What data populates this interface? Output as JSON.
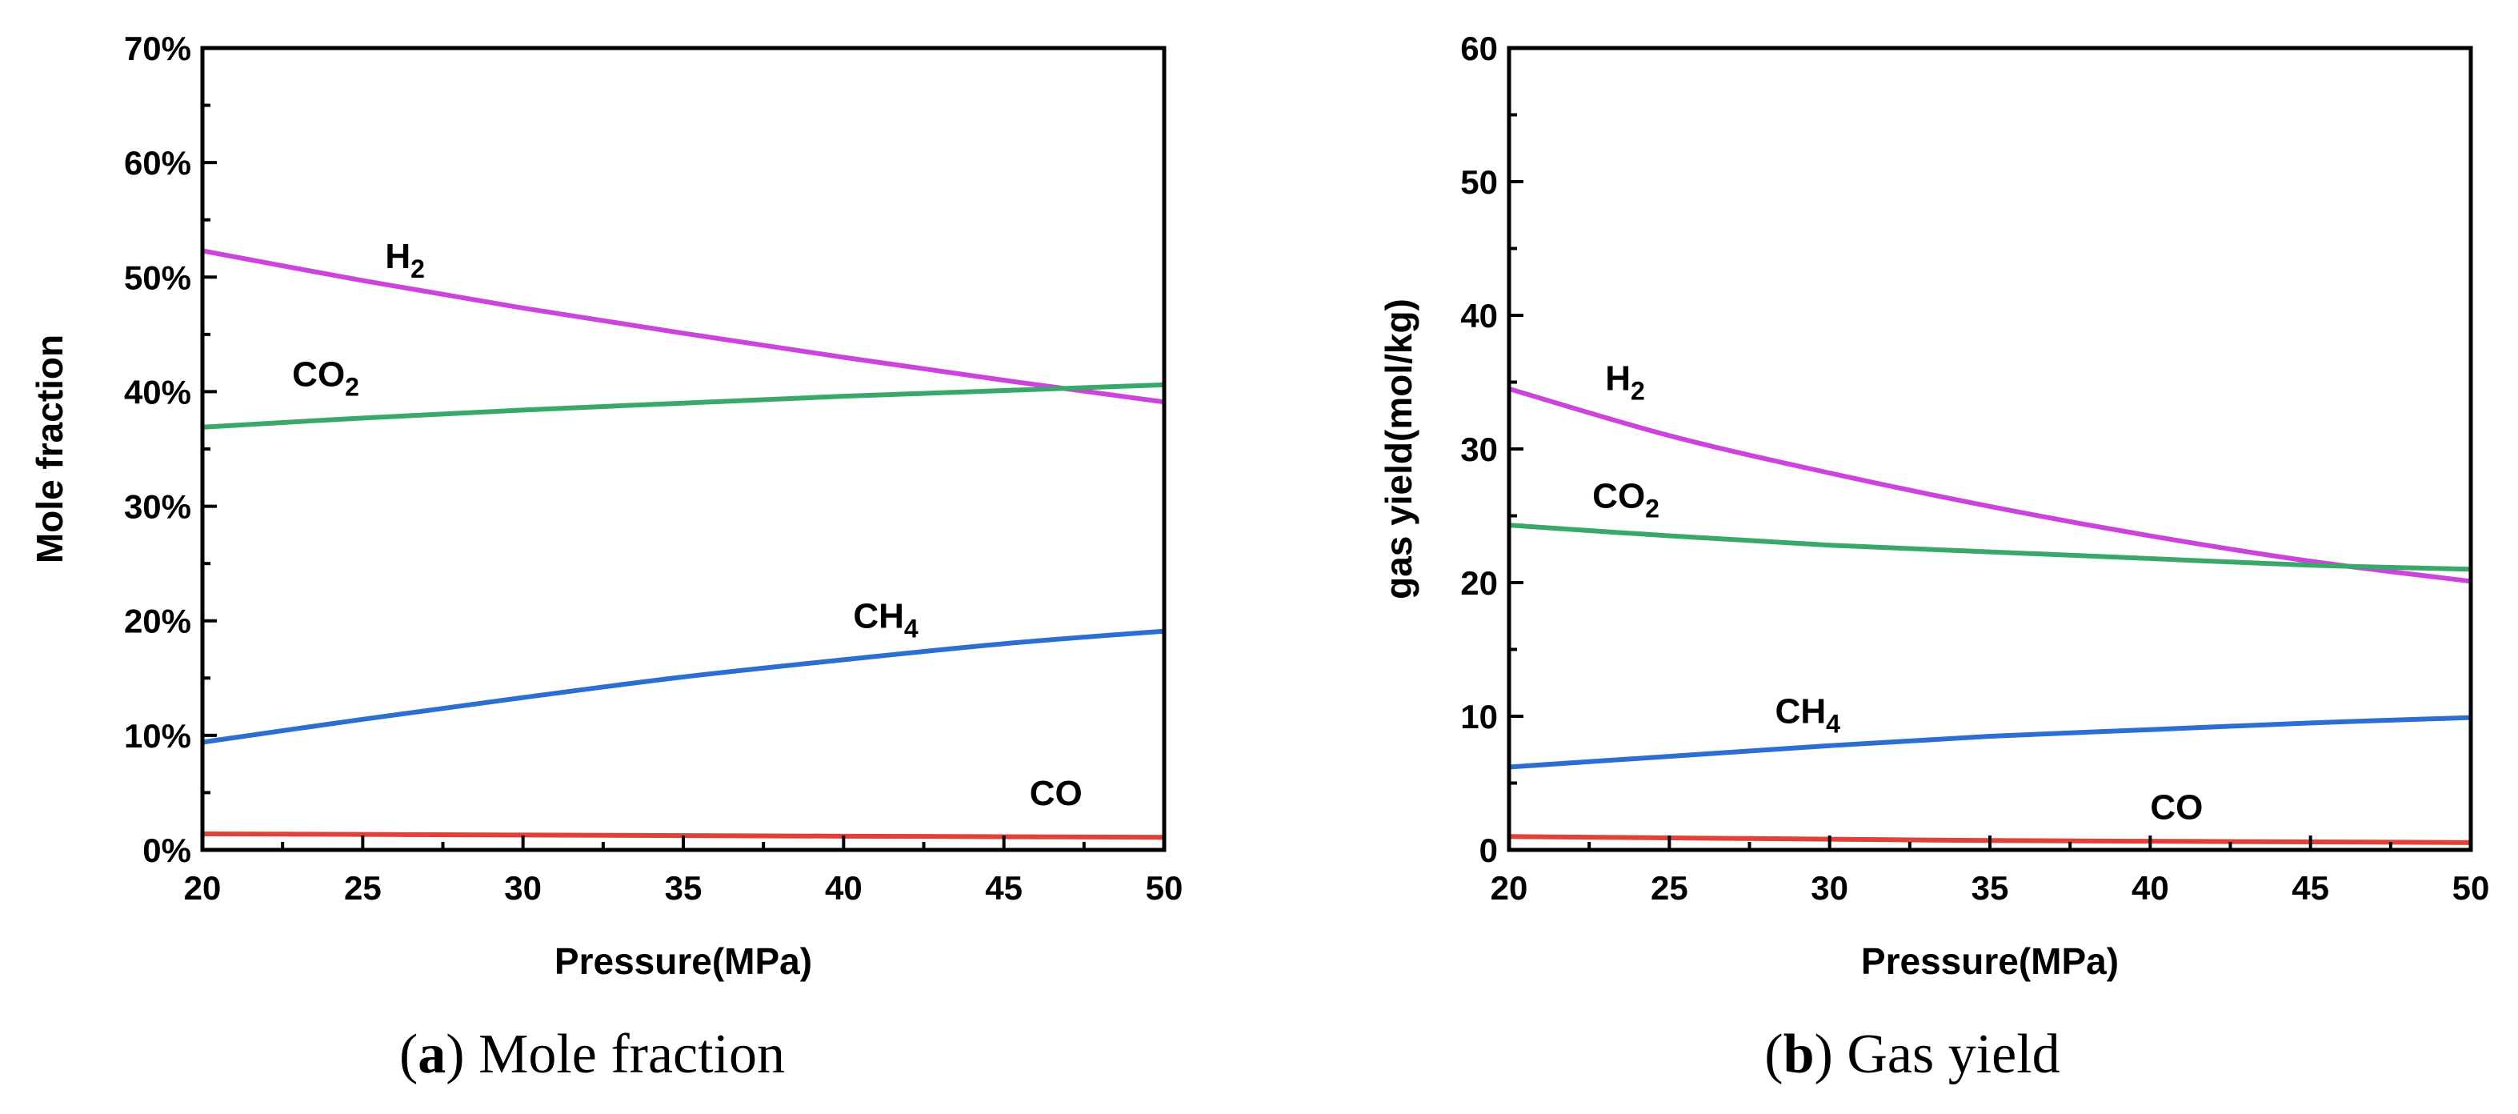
{
  "chart_data": [
    {
      "type": "line",
      "caption_letter": "a",
      "caption_text": " Mole fraction",
      "xlabel": "Pressure(MPa)",
      "ylabel": "Mole fraction",
      "xlim": [
        20,
        50
      ],
      "ylim": [
        0,
        70
      ],
      "x_ticks": [
        20,
        25,
        30,
        35,
        40,
        45,
        50
      ],
      "y_ticks": [
        0,
        10,
        20,
        30,
        40,
        50,
        60,
        70
      ],
      "y_tick_labels": [
        "0%",
        "10%",
        "20%",
        "30%",
        "40%",
        "50%",
        "60%",
        "70%"
      ],
      "x_tick_labels": [
        "20",
        "25",
        "30",
        "35",
        "40",
        "45",
        "50"
      ],
      "series": [
        {
          "name": "H",
          "sub": "2",
          "color": "#cc44dd",
          "x": [
            20,
            25,
            30,
            35,
            40,
            45,
            50
          ],
          "values": [
            52.3,
            49.7,
            47.3,
            45.1,
            43.0,
            41.0,
            39.1
          ],
          "label_at": [
            25.7,
            50.8
          ]
        },
        {
          "name": "CO",
          "sub": "2",
          "color": "#3aa86a",
          "x": [
            20,
            25,
            30,
            35,
            40,
            45,
            50
          ],
          "values": [
            36.9,
            37.7,
            38.4,
            39.0,
            39.6,
            40.1,
            40.6
          ],
          "label_at": [
            22.8,
            40.5
          ]
        },
        {
          "name": "CH",
          "sub": "4",
          "color": "#2a6fd1",
          "x": [
            20,
            25,
            30,
            35,
            40,
            45,
            50
          ],
          "values": [
            9.4,
            11.4,
            13.3,
            15.1,
            16.6,
            18.0,
            19.1
          ],
          "label_at": [
            40.3,
            19.4
          ]
        },
        {
          "name": "CO",
          "sub": "",
          "color": "#e0413a",
          "x": [
            20,
            25,
            30,
            35,
            40,
            45,
            50
          ],
          "values": [
            1.4,
            1.35,
            1.3,
            1.25,
            1.2,
            1.15,
            1.1
          ],
          "label_at": [
            45.8,
            3.9
          ]
        }
      ]
    },
    {
      "type": "line",
      "caption_letter": "b",
      "caption_text": " Gas yield",
      "xlabel": "Pressure(MPa)",
      "ylabel": "gas yield(mol/kg)",
      "xlim": [
        20,
        50
      ],
      "ylim": [
        0,
        60
      ],
      "x_ticks": [
        20,
        25,
        30,
        35,
        40,
        45,
        50
      ],
      "y_ticks": [
        0,
        10,
        20,
        30,
        40,
        50,
        60
      ],
      "y_tick_labels": [
        "0",
        "10",
        "20",
        "30",
        "40",
        "50",
        "60"
      ],
      "x_tick_labels": [
        "20",
        "25",
        "30",
        "35",
        "40",
        "45",
        "50"
      ],
      "series": [
        {
          "name": "H",
          "sub": "2",
          "color": "#cc44dd",
          "x": [
            20,
            25,
            30,
            35,
            40,
            45,
            50
          ],
          "values": [
            34.5,
            31.0,
            28.2,
            25.7,
            23.5,
            21.6,
            20.1
          ],
          "label_at": [
            23.0,
            34.4
          ]
        },
        {
          "name": "CO",
          "sub": "2",
          "color": "#3aa86a",
          "x": [
            20,
            25,
            30,
            35,
            40,
            45,
            50
          ],
          "values": [
            24.3,
            23.5,
            22.8,
            22.3,
            21.8,
            21.3,
            21.0
          ],
          "label_at": [
            22.6,
            25.6
          ]
        },
        {
          "name": "CH",
          "sub": "4",
          "color": "#2a6fd1",
          "x": [
            20,
            25,
            30,
            35,
            40,
            45,
            50
          ],
          "values": [
            6.2,
            7.0,
            7.8,
            8.5,
            9.0,
            9.5,
            9.9
          ],
          "label_at": [
            28.3,
            9.5
          ]
        },
        {
          "name": "CO",
          "sub": "",
          "color": "#e0413a",
          "x": [
            20,
            25,
            30,
            35,
            40,
            45,
            50
          ],
          "values": [
            1.0,
            0.9,
            0.8,
            0.7,
            0.65,
            0.6,
            0.55
          ],
          "label_at": [
            40.0,
            2.3
          ]
        }
      ]
    }
  ]
}
